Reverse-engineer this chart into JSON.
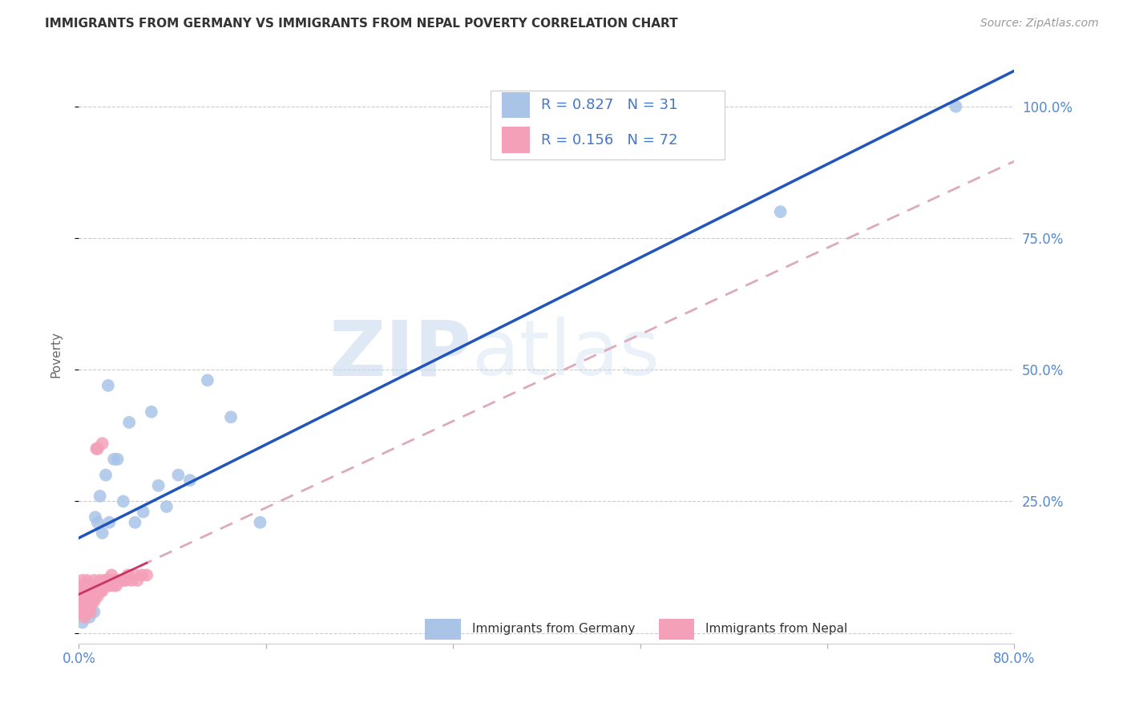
{
  "title": "IMMIGRANTS FROM GERMANY VS IMMIGRANTS FROM NEPAL POVERTY CORRELATION CHART",
  "source": "Source: ZipAtlas.com",
  "ylabel": "Poverty",
  "xlim": [
    0.0,
    0.8
  ],
  "ylim": [
    -0.02,
    1.08
  ],
  "xticks": [
    0.0,
    0.16,
    0.32,
    0.48,
    0.64,
    0.8
  ],
  "xtick_labels": [
    "0.0%",
    "",
    "",
    "",
    "",
    "80.0%"
  ],
  "ytick_labels": [
    "",
    "25.0%",
    "50.0%",
    "75.0%",
    "100.0%"
  ],
  "yticks": [
    0.0,
    0.25,
    0.5,
    0.75,
    1.0
  ],
  "background_color": "#ffffff",
  "grid_color": "#cccccc",
  "germany_color": "#aac4e8",
  "nepal_color": "#f4a0b8",
  "germany_line_color": "#2255bb",
  "nepal_solid_color": "#cc3366",
  "nepal_dash_color": "#ddaabc",
  "R_germany": 0.827,
  "N_germany": 31,
  "R_nepal": 0.156,
  "N_nepal": 72,
  "watermark_zip": "ZIP",
  "watermark_atlas": "atlas",
  "legend_label_germany": "Immigrants from Germany",
  "legend_label_nepal": "Immigrants from Nepal",
  "germany_x": [
    0.003,
    0.005,
    0.006,
    0.007,
    0.009,
    0.01,
    0.011,
    0.013,
    0.014,
    0.016,
    0.018,
    0.02,
    0.023,
    0.026,
    0.03,
    0.033,
    0.038,
    0.043,
    0.048,
    0.055,
    0.062,
    0.068,
    0.075,
    0.085,
    0.095,
    0.11,
    0.13,
    0.155,
    0.6,
    0.75,
    0.025
  ],
  "germany_y": [
    0.02,
    0.04,
    0.06,
    0.08,
    0.03,
    0.09,
    0.06,
    0.04,
    0.22,
    0.21,
    0.26,
    0.19,
    0.3,
    0.21,
    0.33,
    0.33,
    0.25,
    0.4,
    0.21,
    0.23,
    0.42,
    0.28,
    0.24,
    0.3,
    0.29,
    0.48,
    0.41,
    0.21,
    0.8,
    1.0,
    0.47
  ],
  "nepal_x": [
    0.001,
    0.001,
    0.002,
    0.002,
    0.002,
    0.003,
    0.003,
    0.003,
    0.003,
    0.004,
    0.004,
    0.004,
    0.005,
    0.005,
    0.005,
    0.005,
    0.006,
    0.006,
    0.006,
    0.007,
    0.007,
    0.007,
    0.007,
    0.008,
    0.008,
    0.008,
    0.009,
    0.009,
    0.01,
    0.01,
    0.01,
    0.011,
    0.011,
    0.012,
    0.012,
    0.013,
    0.013,
    0.013,
    0.014,
    0.014,
    0.015,
    0.015,
    0.016,
    0.016,
    0.017,
    0.017,
    0.018,
    0.018,
    0.019,
    0.02,
    0.02,
    0.021,
    0.022,
    0.023,
    0.024,
    0.025,
    0.026,
    0.027,
    0.028,
    0.03,
    0.031,
    0.032,
    0.034,
    0.036,
    0.038,
    0.04,
    0.042,
    0.045,
    0.048,
    0.05,
    0.054,
    0.058
  ],
  "nepal_y": [
    0.04,
    0.06,
    0.05,
    0.07,
    0.09,
    0.04,
    0.06,
    0.08,
    0.1,
    0.04,
    0.06,
    0.08,
    0.03,
    0.05,
    0.07,
    0.09,
    0.05,
    0.07,
    0.09,
    0.04,
    0.06,
    0.08,
    0.1,
    0.05,
    0.07,
    0.09,
    0.05,
    0.08,
    0.04,
    0.06,
    0.08,
    0.06,
    0.08,
    0.07,
    0.09,
    0.06,
    0.08,
    0.1,
    0.07,
    0.09,
    0.35,
    0.08,
    0.35,
    0.07,
    0.08,
    0.09,
    0.08,
    0.1,
    0.08,
    0.36,
    0.08,
    0.09,
    0.1,
    0.09,
    0.1,
    0.09,
    0.1,
    0.09,
    0.11,
    0.09,
    0.1,
    0.09,
    0.1,
    0.1,
    0.1,
    0.1,
    0.11,
    0.1,
    0.11,
    0.1,
    0.11,
    0.11
  ]
}
